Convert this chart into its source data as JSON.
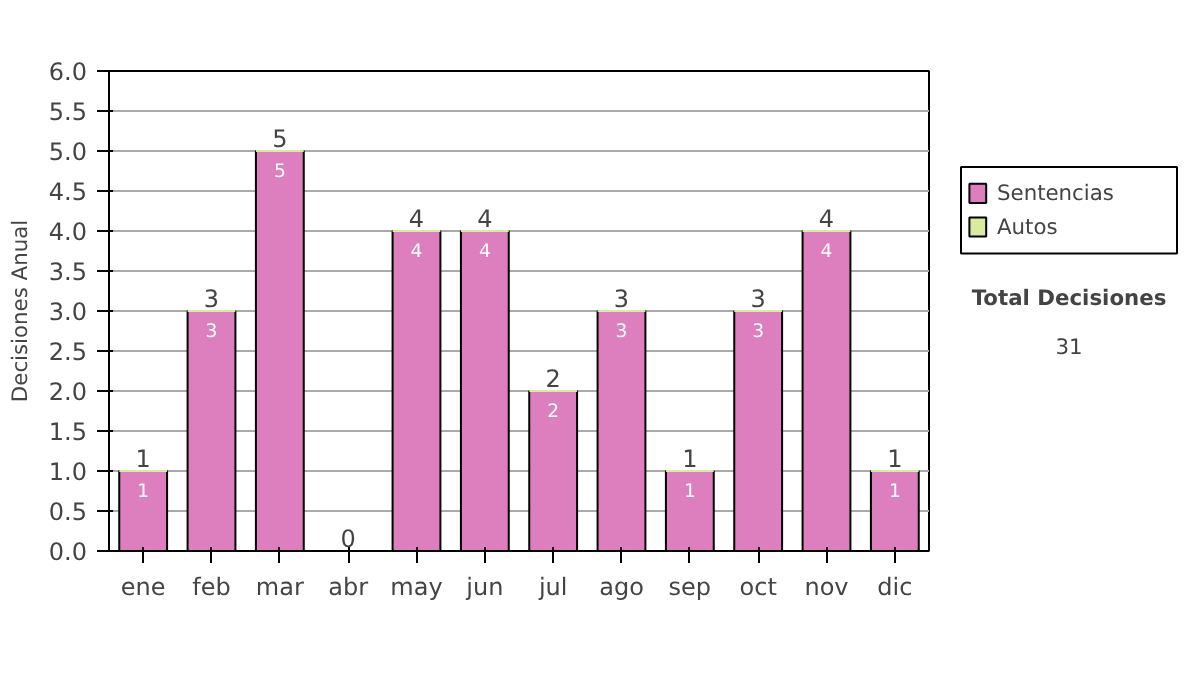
{
  "chart_data": {
    "type": "bar",
    "stacked": true,
    "ylabel": "Decisiones Anual",
    "categories": [
      "ene",
      "feb",
      "mar",
      "abr",
      "may",
      "jun",
      "jul",
      "ago",
      "sep",
      "oct",
      "nov",
      "dic"
    ],
    "series": [
      {
        "name": "Sentencias",
        "color": "#dd7fbf",
        "values": [
          1,
          3,
          5,
          0,
          4,
          4,
          2,
          3,
          1,
          3,
          4,
          1
        ],
        "value_labels": [
          "1",
          "3",
          "5",
          null,
          "4",
          "4",
          "2",
          "3",
          "1",
          "3",
          "4",
          "1"
        ]
      },
      {
        "name": "Autos",
        "color": "#d8eba0",
        "values": [
          0,
          0,
          0,
          0,
          0,
          0,
          0,
          0,
          0,
          0,
          0,
          0
        ]
      }
    ],
    "totals": [
      "1",
      "3",
      "5",
      "0",
      "4",
      "4",
      "2",
      "3",
      "1",
      "3",
      "4",
      "1"
    ],
    "ylim": [
      0,
      6
    ],
    "yticks": [
      "0.0",
      "0.5",
      "1.0",
      "1.5",
      "2.0",
      "2.5",
      "3.0",
      "3.5",
      "4.0",
      "4.5",
      "5.0",
      "5.5",
      "6.0"
    ],
    "grid": "y",
    "legend": "right",
    "annotations": [
      "Total Decisiones",
      "31"
    ]
  }
}
